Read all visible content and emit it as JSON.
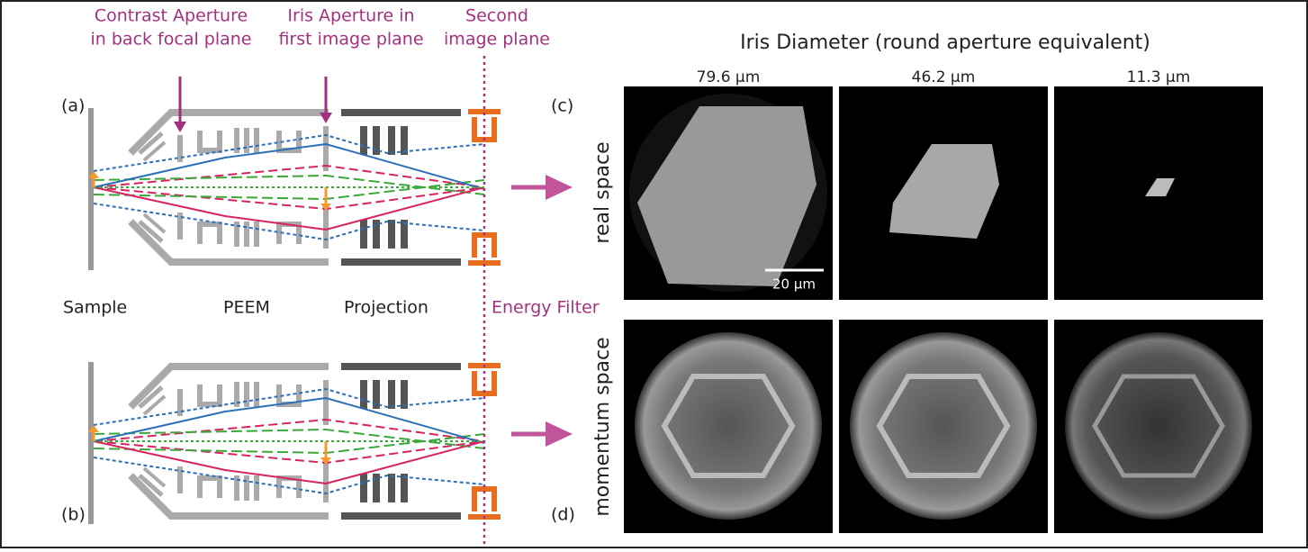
{
  "labels": {
    "contrast_aperture": [
      "Contrast Aperture",
      "in back focal plane"
    ],
    "iris_aperture": [
      "Iris Aperture in",
      "first image plane"
    ],
    "second_plane": [
      "Second",
      "image plane"
    ],
    "panel_a": "(a)",
    "panel_b": "(b)",
    "panel_c": "(c)",
    "panel_d": "(d)",
    "sample": "Sample",
    "peem": "PEEM",
    "projection": "Projection",
    "energy_filter": "Energy Filter"
  },
  "images": {
    "title": "Iris Diameter (round aperture equivalent)",
    "diameters": [
      "79.6 µm",
      "46.2 µm",
      "11.3 µm"
    ],
    "rows": [
      "real space",
      "momentum space"
    ],
    "scale_bar": "20 µm"
  }
}
